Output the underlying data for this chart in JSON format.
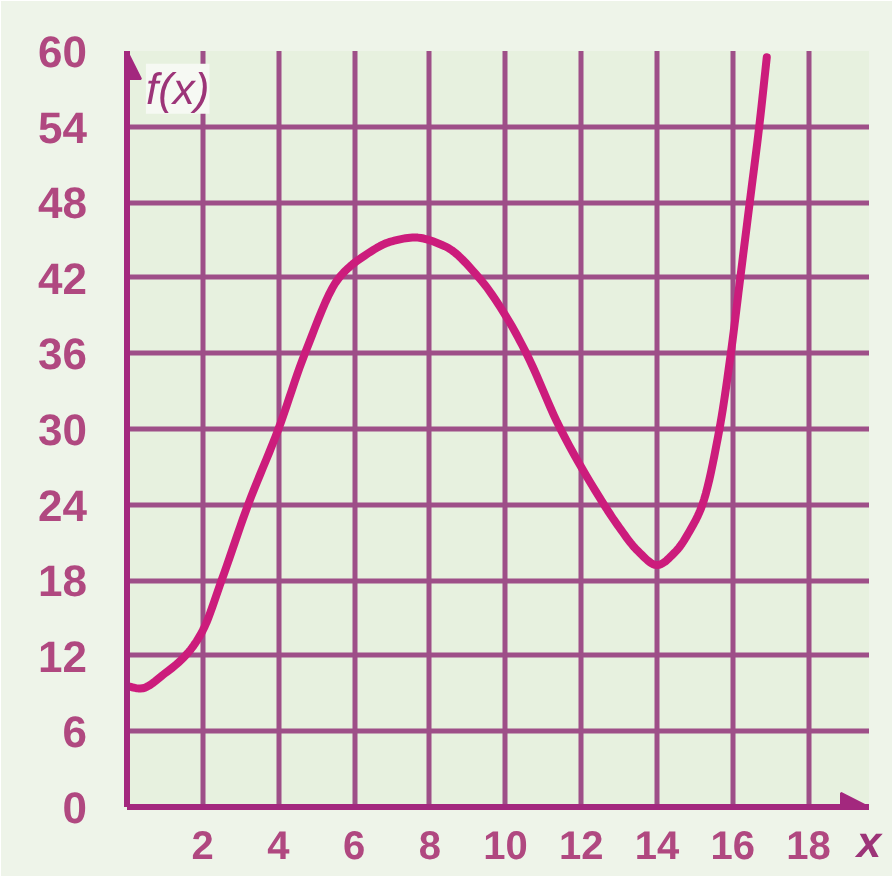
{
  "chart_data": {
    "type": "line",
    "xlabel": "x",
    "ylabel": "f(x)",
    "x": [
      0,
      0.35,
      1,
      1.6,
      2,
      2.5,
      3.2,
      4,
      4.7,
      5.6,
      6.2,
      7,
      7.6,
      8.4,
      9.3,
      10,
      10.55,
      11.45,
      12.6,
      13,
      13.5,
      14,
      14.5,
      14.9,
      15.2,
      15.65,
      15.95,
      16.2,
      16.45,
      16.7,
      16.9
    ],
    "series": [
      {
        "color": "#cc1c7c",
        "values": [
          9.6,
          9.4,
          10.6,
          12.2,
          14,
          18,
          24,
          30,
          36,
          42,
          43.6,
          44.9,
          45.2,
          44.5,
          42,
          39,
          36,
          30,
          24,
          22.2,
          20.3,
          19.2,
          20.3,
          22.1,
          24,
          30,
          36,
          42,
          48,
          54,
          59.5
        ]
      }
    ],
    "xlim": [
      0,
      19.6
    ],
    "ylim": [
      0,
      60
    ],
    "xticks": [
      2,
      4,
      6,
      8,
      10,
      12,
      14,
      16,
      18
    ],
    "yticks": [
      0,
      6,
      12,
      18,
      24,
      30,
      36,
      42,
      48,
      54,
      60
    ],
    "grid": true,
    "line_style": "solid"
  }
}
